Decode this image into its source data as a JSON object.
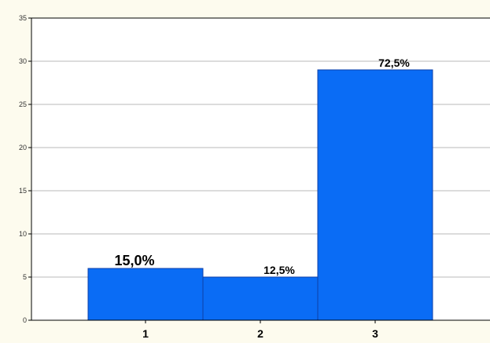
{
  "chart_data": {
    "type": "bar",
    "categories": [
      "1",
      "2",
      "3"
    ],
    "values": [
      6,
      5,
      29
    ],
    "data_labels": [
      "15,0%",
      "12,5%",
      "72,5%"
    ],
    "ylim": [
      0,
      35
    ],
    "yticks": [
      "0",
      "5",
      "10",
      "15",
      "20",
      "25",
      "30",
      "35"
    ],
    "grid": true,
    "legend": "none",
    "title": "",
    "xlabel": "",
    "ylabel": "",
    "colors": {
      "bar": "#0a6cf5",
      "bar_border": "#0e3fa8",
      "grid": "#b8b8b8",
      "axis": "#000000",
      "plot_background": "#ffffff",
      "background": "#fdfbee"
    }
  }
}
